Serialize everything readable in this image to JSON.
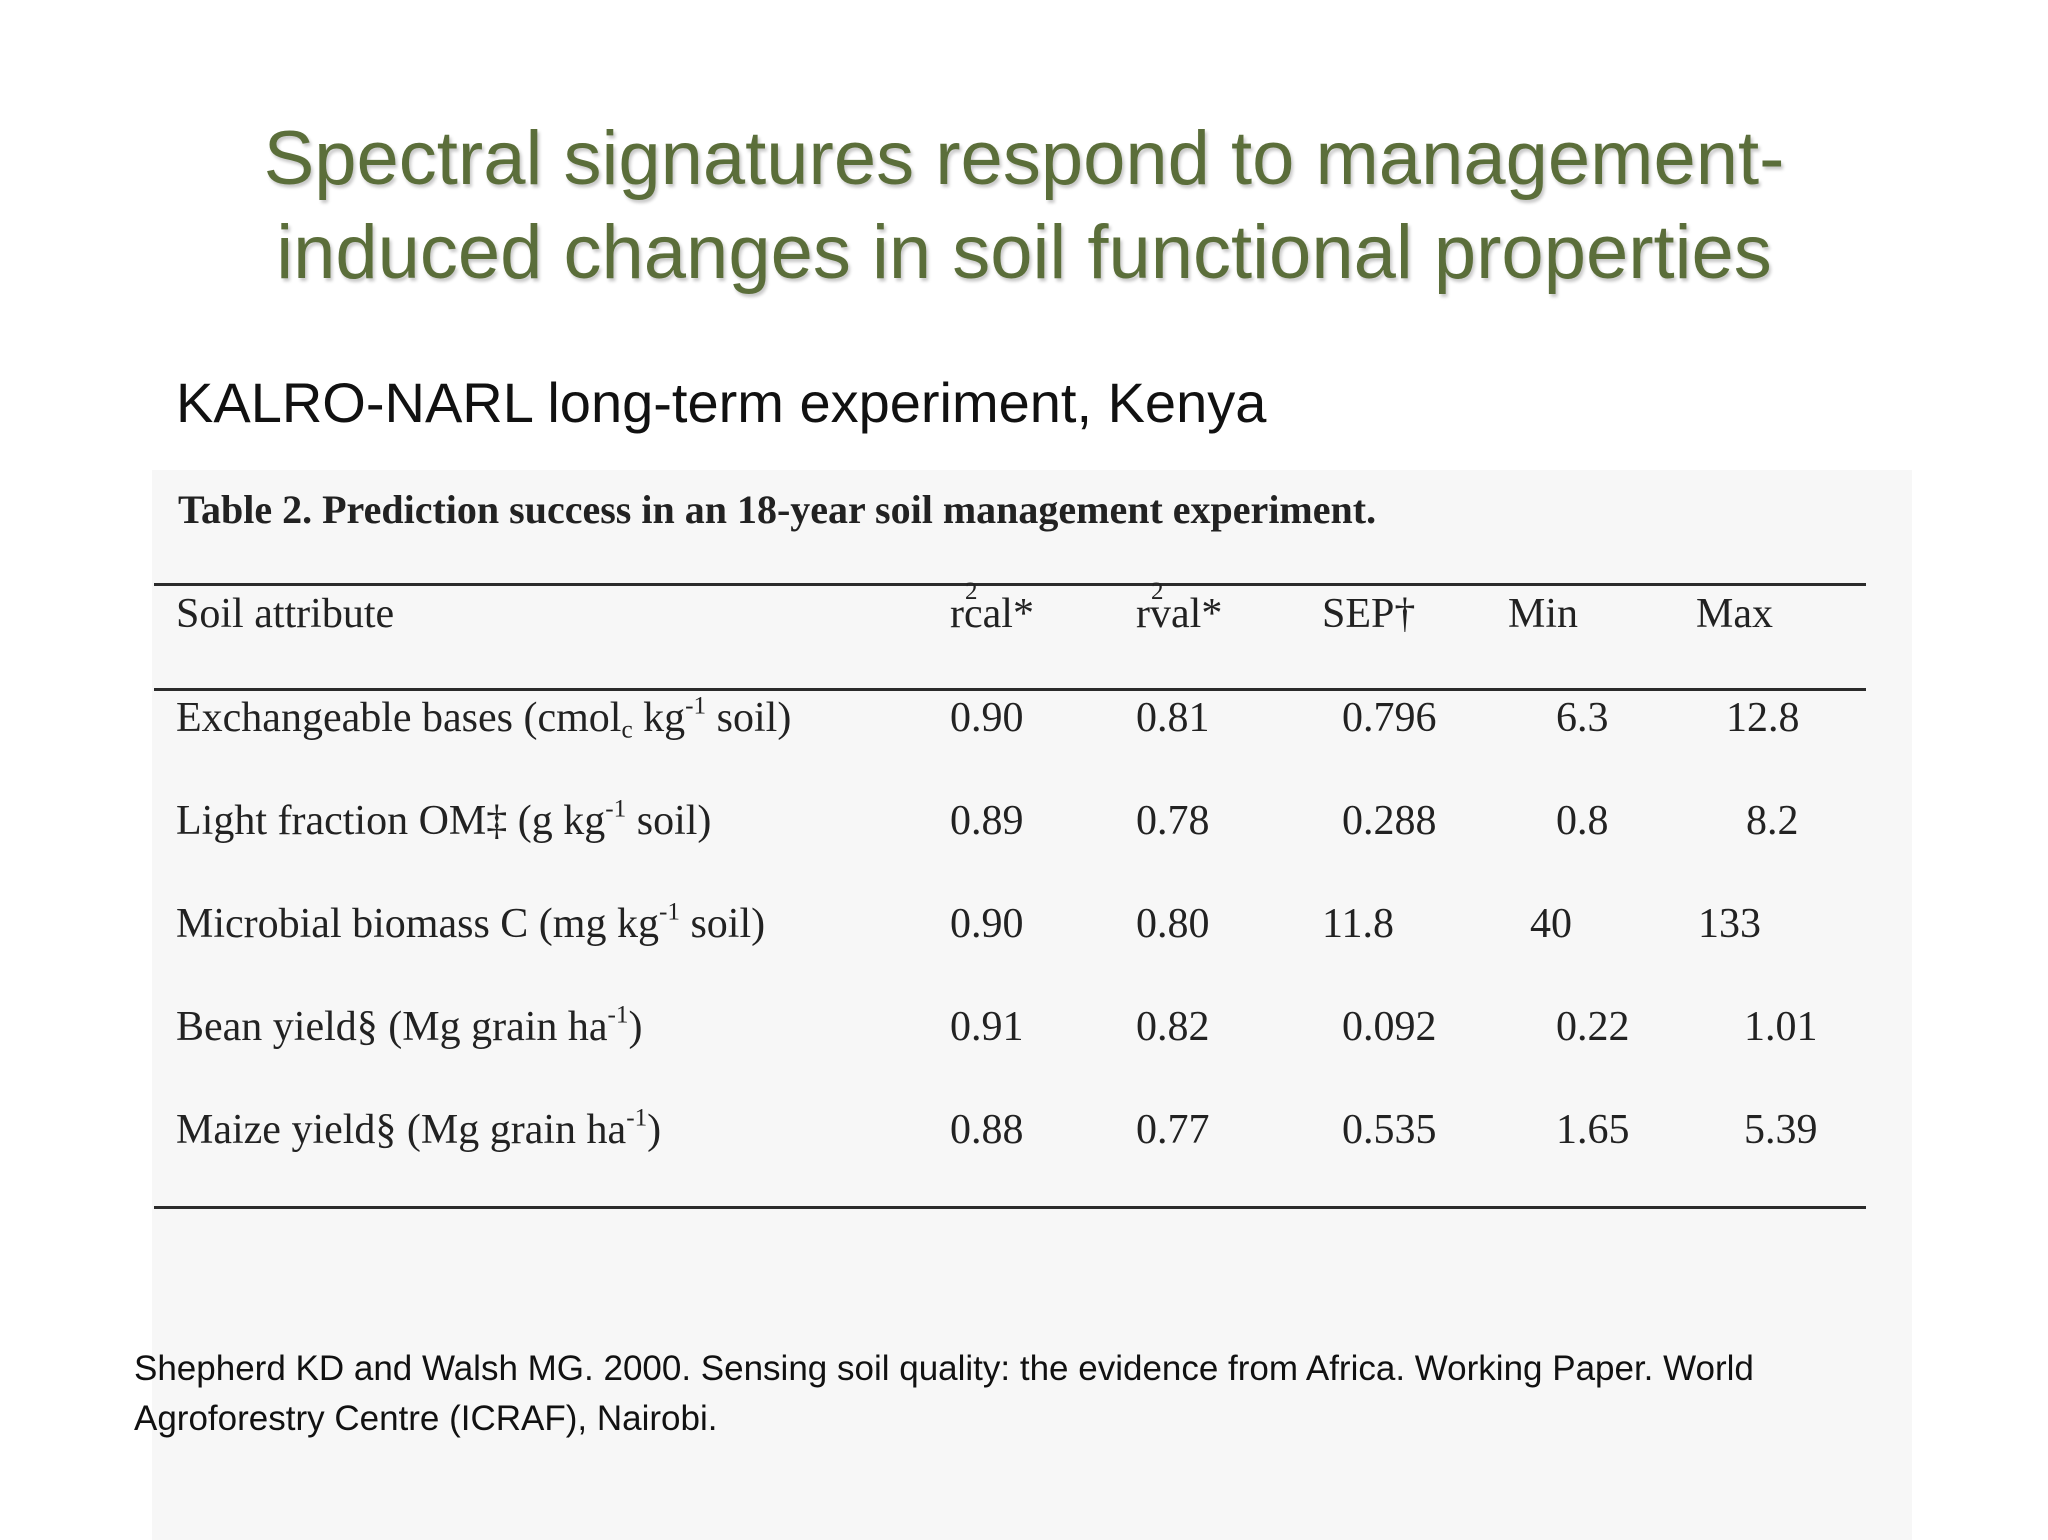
{
  "slide": {
    "title_line1": "Spectral signatures respond to management-",
    "title_line2": "induced changes in soil functional properties",
    "subtitle": "KALRO-NARL long-term experiment, Kenya"
  },
  "table": {
    "caption": "Table 2. Prediction success in an 18-year soil management experiment.",
    "headers": {
      "attribute": "Soil attribute",
      "r2_symbol": "r",
      "r2_exponent": "2",
      "r2cal_label": "cal",
      "r2val_label": "val",
      "asterisk": "*",
      "sep": "SEP†",
      "min": "Min",
      "max": "Max"
    },
    "rows": [
      {
        "attr_main": "Exchangeable bases (cmol",
        "attr_sub": "c",
        "attr_mid": " kg",
        "attr_sup": "-1",
        "attr_end": " soil)",
        "r2cal": "0.90",
        "r2val": "0.81",
        "sep": "0.796",
        "min": "6.3",
        "max": "12.8"
      },
      {
        "attr_main": "Light fraction OM‡ (g kg",
        "attr_sup": "-1",
        "attr_end": " soil)",
        "r2cal": "0.89",
        "r2val": "0.78",
        "sep": "0.288",
        "min": "0.8",
        "max": "8.2"
      },
      {
        "attr_main": "Microbial biomass C (mg kg",
        "attr_sup": "-1",
        "attr_end": " soil)",
        "r2cal": "0.90",
        "r2val": "0.80",
        "sep": "11.8",
        "min": "40",
        "max": "133"
      },
      {
        "attr_main": "Bean yield§ (Mg grain ha",
        "attr_sup": "-1",
        "attr_end": ")",
        "r2cal": "0.91",
        "r2val": "0.82",
        "sep": "0.092",
        "min": "0.22",
        "max": "1.01"
      },
      {
        "attr_main": "Maize yield§ (Mg grain ha",
        "attr_sup": "-1",
        "attr_end": ")",
        "r2cal": "0.88",
        "r2val": "0.77",
        "sep": "0.535",
        "min": "1.65",
        "max": "5.39"
      }
    ]
  },
  "reference": {
    "line1": "Shepherd KD and Walsh MG. 2000. Sensing soil quality: the evidence from Africa. Working Paper. World",
    "line2": "Agroforestry Centre (ICRAF), Nairobi."
  }
}
